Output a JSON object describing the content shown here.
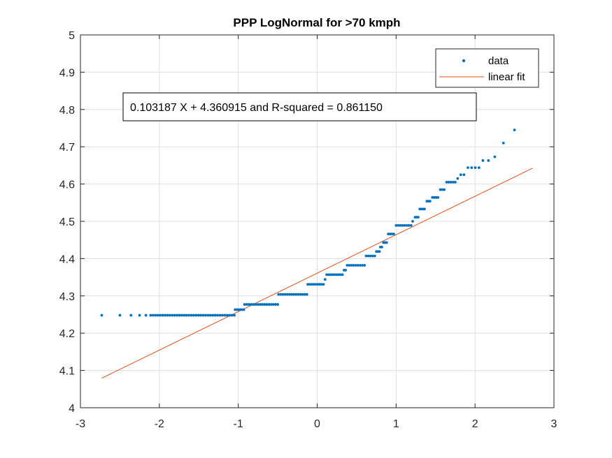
{
  "chart_data": {
    "type": "scatter",
    "title": "PPP LogNormal for >70 kmph",
    "xlabel": "",
    "ylabel": "",
    "xlim": [
      -3,
      3
    ],
    "ylim": [
      4,
      5
    ],
    "xticks": [
      "-3",
      "-2",
      "-1",
      "0",
      "1",
      "2",
      "3"
    ],
    "yticks": [
      "4",
      "4.1",
      "4.2",
      "4.3",
      "4.4",
      "4.5",
      "4.6",
      "4.7",
      "4.8",
      "4.9",
      "5"
    ],
    "grid": true,
    "legend": {
      "placement": "top-right",
      "entries": [
        "data",
        "linear fit"
      ]
    },
    "annotation": "0.103187 X + 4.360915 and R-squared = 0.861150",
    "colors": {
      "data": "#0072BD",
      "fit": "#D95319",
      "grid": "#DFDFDF",
      "axes": "#262626"
    },
    "fit": {
      "slope": 0.103187,
      "intercept": 4.360915,
      "x_range": [
        -2.73,
        2.73
      ]
    },
    "runs": [
      {
        "x0": -2.73,
        "x1": -2.73,
        "n": 1,
        "y": 4.248
      },
      {
        "x0": -2.5,
        "x1": -2.5,
        "n": 1,
        "y": 4.248
      },
      {
        "x0": -2.36,
        "x1": -2.36,
        "n": 1,
        "y": 4.248
      },
      {
        "x0": -2.25,
        "x1": -2.25,
        "n": 1,
        "y": 4.248
      },
      {
        "x0": -2.17,
        "x1": -2.17,
        "n": 1,
        "y": 4.248
      },
      {
        "x0": -2.11,
        "x1": -1.05,
        "n": 36,
        "y": 4.248
      },
      {
        "x0": -1.04,
        "x1": -0.93,
        "n": 6,
        "y": 4.263
      },
      {
        "x0": -0.92,
        "x1": -0.5,
        "n": 16,
        "y": 4.277
      },
      {
        "x0": -0.49,
        "x1": -0.13,
        "n": 14,
        "y": 4.304
      },
      {
        "x0": -0.12,
        "x1": 0.08,
        "n": 9,
        "y": 4.331
      },
      {
        "x0": 0.1,
        "x1": 0.1,
        "n": 1,
        "y": 4.344
      },
      {
        "x0": 0.12,
        "x1": 0.32,
        "n": 9,
        "y": 4.357
      },
      {
        "x0": 0.34,
        "x1": 0.36,
        "n": 2,
        "y": 4.369
      },
      {
        "x0": 0.38,
        "x1": 0.6,
        "n": 9,
        "y": 4.382
      },
      {
        "x0": 0.62,
        "x1": 0.73,
        "n": 5,
        "y": 4.407
      },
      {
        "x0": 0.75,
        "x1": 0.79,
        "n": 3,
        "y": 4.419
      },
      {
        "x0": 0.8,
        "x1": 0.82,
        "n": 2,
        "y": 4.431
      },
      {
        "x0": 0.84,
        "x1": 0.88,
        "n": 3,
        "y": 4.443
      },
      {
        "x0": 0.9,
        "x1": 0.97,
        "n": 4,
        "y": 4.466
      },
      {
        "x0": 1.0,
        "x1": 1.19,
        "n": 8,
        "y": 4.489
      },
      {
        "x0": 1.21,
        "x1": 1.21,
        "n": 1,
        "y": 4.5
      },
      {
        "x0": 1.24,
        "x1": 1.28,
        "n": 3,
        "y": 4.511
      },
      {
        "x0": 1.3,
        "x1": 1.36,
        "n": 4,
        "y": 4.533
      },
      {
        "x0": 1.39,
        "x1": 1.43,
        "n": 3,
        "y": 4.554
      },
      {
        "x0": 1.46,
        "x1": 1.53,
        "n": 4,
        "y": 4.564
      },
      {
        "x0": 1.56,
        "x1": 1.61,
        "n": 3,
        "y": 4.585
      },
      {
        "x0": 1.64,
        "x1": 1.75,
        "n": 5,
        "y": 4.605
      },
      {
        "x0": 1.78,
        "x1": 1.78,
        "n": 1,
        "y": 4.615
      },
      {
        "x0": 1.82,
        "x1": 1.86,
        "n": 2,
        "y": 4.625
      },
      {
        "x0": 1.91,
        "x1": 2.05,
        "n": 4,
        "y": 4.644
      },
      {
        "x0": 2.1,
        "x1": 2.17,
        "n": 2,
        "y": 4.663
      },
      {
        "x0": 2.25,
        "x1": 2.25,
        "n": 1,
        "y": 4.673
      },
      {
        "x0": 2.36,
        "x1": 2.36,
        "n": 1,
        "y": 4.71
      },
      {
        "x0": 2.5,
        "x1": 2.5,
        "n": 1,
        "y": 4.745
      }
    ]
  }
}
